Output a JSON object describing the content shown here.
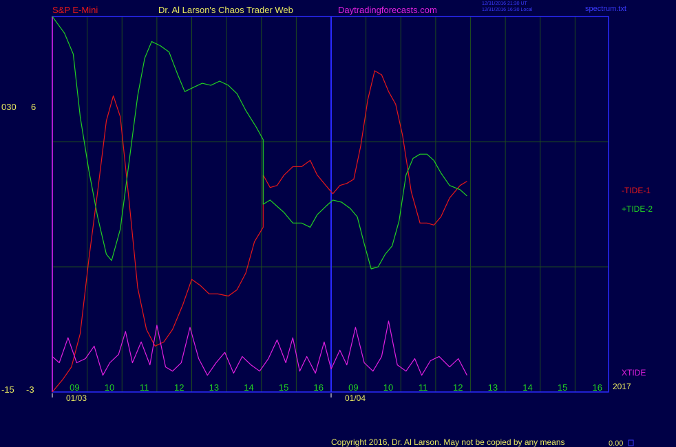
{
  "header": {
    "symbol": "S&P E-Mini",
    "brand": "Dr. Al Larson's Chaos Trader Web",
    "site": "Daytradingforecasts.com",
    "timestamp_1": "12/31/2016 21:30 UT",
    "timestamp_2": "12/31/2016 16:30 Local",
    "filename": "spectrum.txt"
  },
  "footer": {
    "copyright": "Copyright 2016, Dr. Al Larson. May not be copied by any means",
    "value": "0.00"
  },
  "colors": {
    "background": "#000046",
    "grid": "#1e4a1e",
    "frame": "#2a2aff",
    "tide1": "#e81818",
    "tide2": "#22d022",
    "xtide": "#e020e0",
    "hour_label": "#22d022",
    "axis_label": "#e8e860"
  },
  "chart_data": {
    "type": "line",
    "y_axis_labels": [
      {
        "left": "030",
        "right": "6"
      },
      {
        "left": "-15",
        "right": "-3"
      }
    ],
    "x_hour_labels": [
      "09",
      "10",
      "11",
      "12",
      "13",
      "14",
      "15",
      "16",
      "09",
      "10",
      "11",
      "12",
      "13",
      "14",
      "15",
      "16"
    ],
    "date_labels": [
      "01/03",
      "01/04"
    ],
    "year_label": "2017",
    "series": [
      {
        "name": "-TIDE-1",
        "color": "#e81818",
        "points": [
          [
            0,
            -3
          ],
          [
            0.3,
            -2.7
          ],
          [
            0.55,
            -2.4
          ],
          [
            0.8,
            -1.6
          ],
          [
            1.05,
            0.2
          ],
          [
            1.3,
            1.8
          ],
          [
            1.55,
            3.5
          ],
          [
            1.75,
            4.1
          ],
          [
            1.95,
            3.6
          ],
          [
            2.2,
            1.6
          ],
          [
            2.45,
            -0.5
          ],
          [
            2.7,
            -1.5
          ],
          [
            2.95,
            -1.9
          ],
          [
            3.2,
            -1.8
          ],
          [
            3.45,
            -1.5
          ],
          [
            3.75,
            -0.9
          ],
          [
            4.0,
            -0.3
          ],
          [
            4.25,
            -0.45
          ],
          [
            4.5,
            -0.65
          ],
          [
            4.75,
            -0.65
          ],
          [
            5.05,
            -0.7
          ],
          [
            5.3,
            -0.55
          ],
          [
            5.55,
            -0.15
          ],
          [
            5.8,
            0.6
          ],
          [
            6.05,
            0.95
          ],
          [
            6.05,
            2.2
          ],
          [
            6.25,
            1.9
          ],
          [
            6.45,
            1.95
          ],
          [
            6.65,
            2.2
          ],
          [
            6.9,
            2.4
          ],
          [
            7.15,
            2.4
          ],
          [
            7.4,
            2.55
          ],
          [
            7.6,
            2.2
          ],
          [
            7.85,
            1.95
          ],
          [
            8.05,
            1.75
          ],
          [
            8.25,
            1.95
          ],
          [
            8.45,
            2.0
          ],
          [
            8.65,
            2.1
          ],
          [
            8.85,
            2.9
          ],
          [
            9.05,
            4.0
          ],
          [
            9.25,
            4.7
          ],
          [
            9.45,
            4.6
          ],
          [
            9.65,
            4.2
          ],
          [
            9.85,
            3.9
          ],
          [
            10.05,
            3.15
          ],
          [
            10.3,
            1.8
          ],
          [
            10.55,
            1.05
          ],
          [
            10.75,
            1.05
          ],
          [
            10.95,
            1.0
          ],
          [
            11.15,
            1.2
          ],
          [
            11.4,
            1.65
          ],
          [
            11.7,
            1.95
          ],
          [
            11.9,
            2.05
          ]
        ]
      },
      {
        "name": "+TIDE-2",
        "color": "#22d022",
        "points": [
          [
            0,
            6
          ],
          [
            0.35,
            5.6
          ],
          [
            0.6,
            5.1
          ],
          [
            0.8,
            3.6
          ],
          [
            1.05,
            2.3
          ],
          [
            1.3,
            1.2
          ],
          [
            1.55,
            0.3
          ],
          [
            1.7,
            0.15
          ],
          [
            1.95,
            0.9
          ],
          [
            2.2,
            2.5
          ],
          [
            2.45,
            4.1
          ],
          [
            2.65,
            5.0
          ],
          [
            2.85,
            5.4
          ],
          [
            3.1,
            5.3
          ],
          [
            3.35,
            5.15
          ],
          [
            3.6,
            4.6
          ],
          [
            3.8,
            4.2
          ],
          [
            4.05,
            4.3
          ],
          [
            4.3,
            4.4
          ],
          [
            4.55,
            4.35
          ],
          [
            4.8,
            4.45
          ],
          [
            5.05,
            4.35
          ],
          [
            5.3,
            4.15
          ],
          [
            5.55,
            3.75
          ],
          [
            5.85,
            3.35
          ],
          [
            6.05,
            3.05
          ],
          [
            6.05,
            1.5
          ],
          [
            6.25,
            1.6
          ],
          [
            6.45,
            1.45
          ],
          [
            6.65,
            1.3
          ],
          [
            6.9,
            1.05
          ],
          [
            7.15,
            1.05
          ],
          [
            7.4,
            0.95
          ],
          [
            7.6,
            1.25
          ],
          [
            7.85,
            1.45
          ],
          [
            8.05,
            1.6
          ],
          [
            8.3,
            1.55
          ],
          [
            8.55,
            1.4
          ],
          [
            8.75,
            1.2
          ],
          [
            8.95,
            0.55
          ],
          [
            9.15,
            -0.05
          ],
          [
            9.35,
            0.0
          ],
          [
            9.55,
            0.3
          ],
          [
            9.75,
            0.5
          ],
          [
            9.95,
            1.1
          ],
          [
            10.15,
            2.2
          ],
          [
            10.35,
            2.6
          ],
          [
            10.55,
            2.7
          ],
          [
            10.75,
            2.7
          ],
          [
            10.95,
            2.55
          ],
          [
            11.15,
            2.25
          ],
          [
            11.4,
            1.95
          ],
          [
            11.7,
            1.85
          ],
          [
            11.9,
            1.7
          ]
        ]
      },
      {
        "name": "XTIDE",
        "color": "#e020e0",
        "points": [
          [
            0,
            -2.15
          ],
          [
            0.2,
            -2.3
          ],
          [
            0.45,
            -1.7
          ],
          [
            0.7,
            -2.3
          ],
          [
            0.95,
            -2.2
          ],
          [
            1.2,
            -1.9
          ],
          [
            1.45,
            -2.6
          ],
          [
            1.65,
            -2.3
          ],
          [
            1.9,
            -2.1
          ],
          [
            2.1,
            -1.55
          ],
          [
            2.3,
            -2.3
          ],
          [
            2.55,
            -1.8
          ],
          [
            2.8,
            -2.35
          ],
          [
            3.0,
            -1.4
          ],
          [
            3.25,
            -2.4
          ],
          [
            3.45,
            -2.5
          ],
          [
            3.7,
            -2.3
          ],
          [
            3.95,
            -1.45
          ],
          [
            4.2,
            -2.2
          ],
          [
            4.45,
            -2.6
          ],
          [
            4.7,
            -2.3
          ],
          [
            4.95,
            -2.05
          ],
          [
            5.2,
            -2.55
          ],
          [
            5.45,
            -2.15
          ],
          [
            5.7,
            -2.35
          ],
          [
            5.95,
            -2.5
          ],
          [
            6.2,
            -2.2
          ],
          [
            6.45,
            -1.75
          ],
          [
            6.7,
            -2.3
          ],
          [
            6.9,
            -1.7
          ],
          [
            7.1,
            -2.5
          ],
          [
            7.3,
            -2.15
          ],
          [
            7.55,
            -2.55
          ],
          [
            7.8,
            -1.8
          ],
          [
            8.0,
            -2.45
          ],
          [
            8.25,
            -2.0
          ],
          [
            8.45,
            -2.35
          ],
          [
            8.7,
            -1.45
          ],
          [
            8.95,
            -2.3
          ],
          [
            9.2,
            -2.5
          ],
          [
            9.45,
            -2.15
          ],
          [
            9.65,
            -1.3
          ],
          [
            9.9,
            -2.35
          ],
          [
            10.15,
            -2.5
          ],
          [
            10.4,
            -2.2
          ],
          [
            10.6,
            -2.6
          ],
          [
            10.85,
            -2.25
          ],
          [
            11.1,
            -2.15
          ],
          [
            11.4,
            -2.4
          ],
          [
            11.65,
            -2.2
          ],
          [
            11.9,
            -2.6
          ]
        ]
      }
    ]
  }
}
